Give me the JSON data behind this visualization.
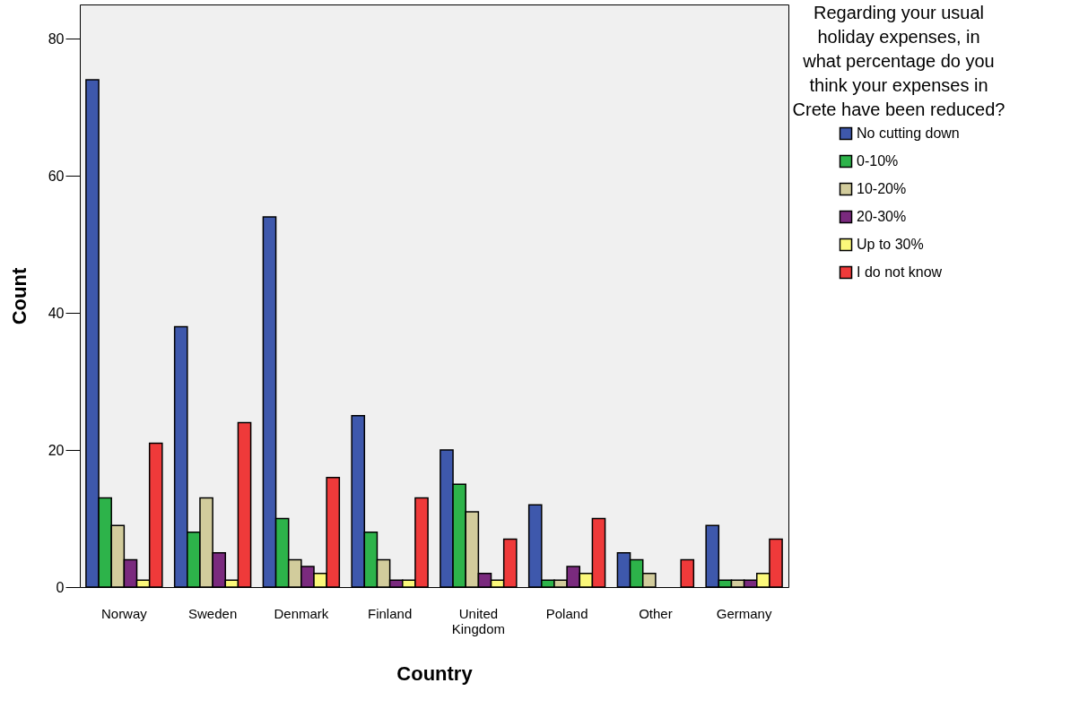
{
  "chart_data": {
    "type": "bar",
    "xlabel": "Country",
    "ylabel": "Count",
    "legend_title": "Regarding your usual holiday expenses, in what percentage do you think your expenses in Crete have been reduced?",
    "categories": [
      "Norway",
      "Sweden",
      "Denmark",
      "Finland",
      "United Kingdom",
      "Poland",
      "Other",
      "Germany"
    ],
    "series": [
      {
        "name": "No cutting down",
        "color": "#3e58ac",
        "values": [
          74,
          38,
          54,
          25,
          20,
          12,
          5,
          9
        ]
      },
      {
        "name": "0-10%",
        "color": "#2db34a",
        "values": [
          13,
          8,
          10,
          8,
          15,
          1,
          4,
          1
        ]
      },
      {
        "name": "10-20%",
        "color": "#d2cc9c",
        "values": [
          9,
          13,
          4,
          4,
          11,
          1,
          2,
          1
        ]
      },
      {
        "name": "20-30%",
        "color": "#7a2a7e",
        "values": [
          4,
          5,
          3,
          1,
          2,
          3,
          null,
          1
        ]
      },
      {
        "name": "Up to 30%",
        "color": "#fbf87a",
        "values": [
          1,
          1,
          2,
          1,
          1,
          2,
          null,
          2
        ]
      },
      {
        "name": "I do not know",
        "color": "#ef3a3a",
        "values": [
          21,
          24,
          16,
          13,
          7,
          10,
          4,
          7
        ]
      }
    ],
    "ylim": [
      0,
      85
    ],
    "yticks": [
      0,
      20,
      40,
      60,
      80
    ],
    "grid": false,
    "legend": "top right"
  }
}
